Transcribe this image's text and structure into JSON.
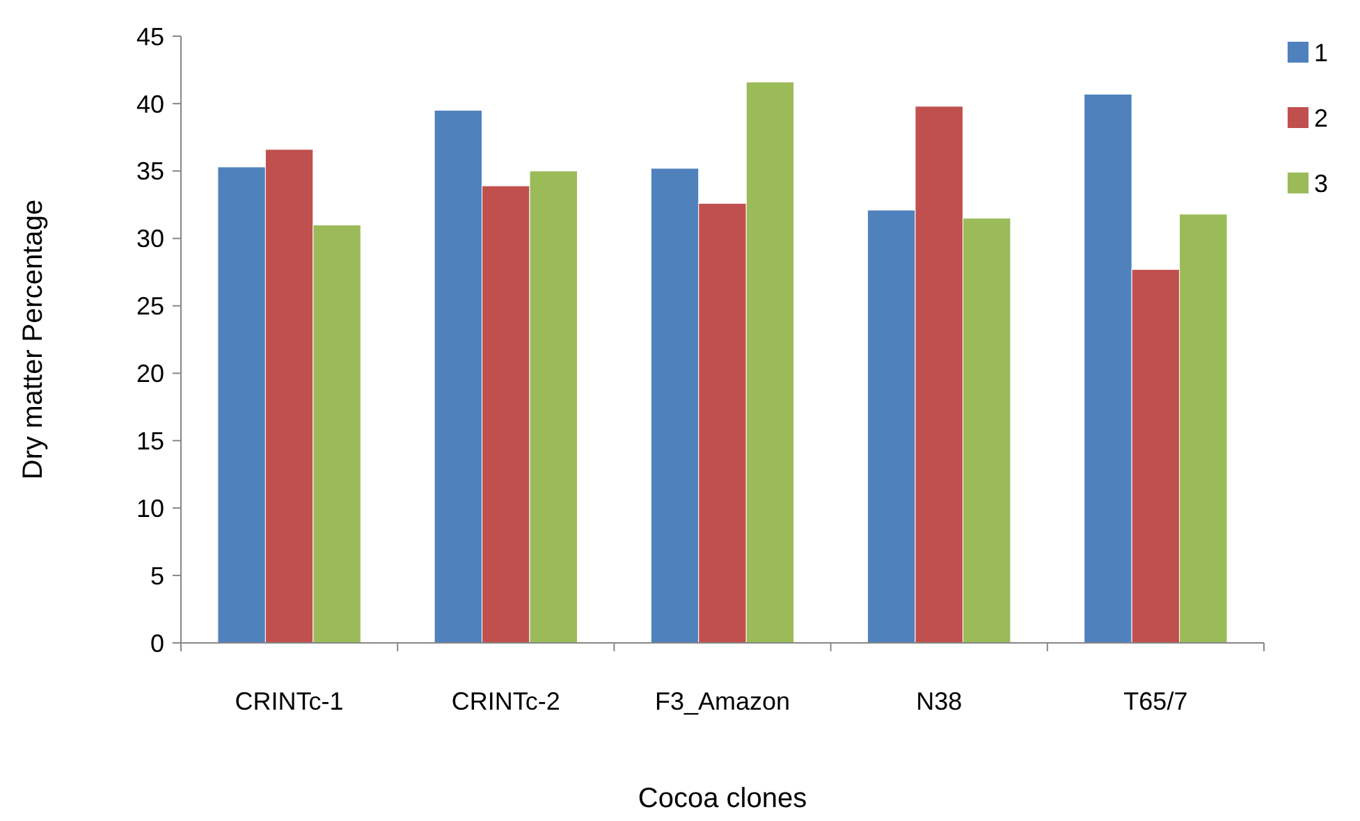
{
  "chart_data": {
    "type": "bar",
    "xlabel": "Cocoa clones",
    "ylabel": "Dry matter Percentage",
    "categories": [
      "CRINTc-1",
      "CRINTc-2",
      "F3_Amazon",
      "N38",
      "T65/7"
    ],
    "series": [
      {
        "name": "1",
        "color": "#4f81bd",
        "values": [
          35.3,
          39.5,
          35.2,
          32.1,
          40.7
        ]
      },
      {
        "name": "2",
        "color": "#c0504d",
        "values": [
          36.6,
          33.9,
          32.6,
          39.8,
          27.7
        ]
      },
      {
        "name": "3",
        "color": "#9bbb59",
        "values": [
          31.0,
          35.0,
          41.6,
          31.5,
          31.8
        ]
      }
    ],
    "ylim": [
      0,
      45
    ],
    "yticks": [
      0,
      5,
      10,
      15,
      20,
      25,
      30,
      35,
      40,
      45
    ],
    "grid": false,
    "legend": "top right"
  }
}
